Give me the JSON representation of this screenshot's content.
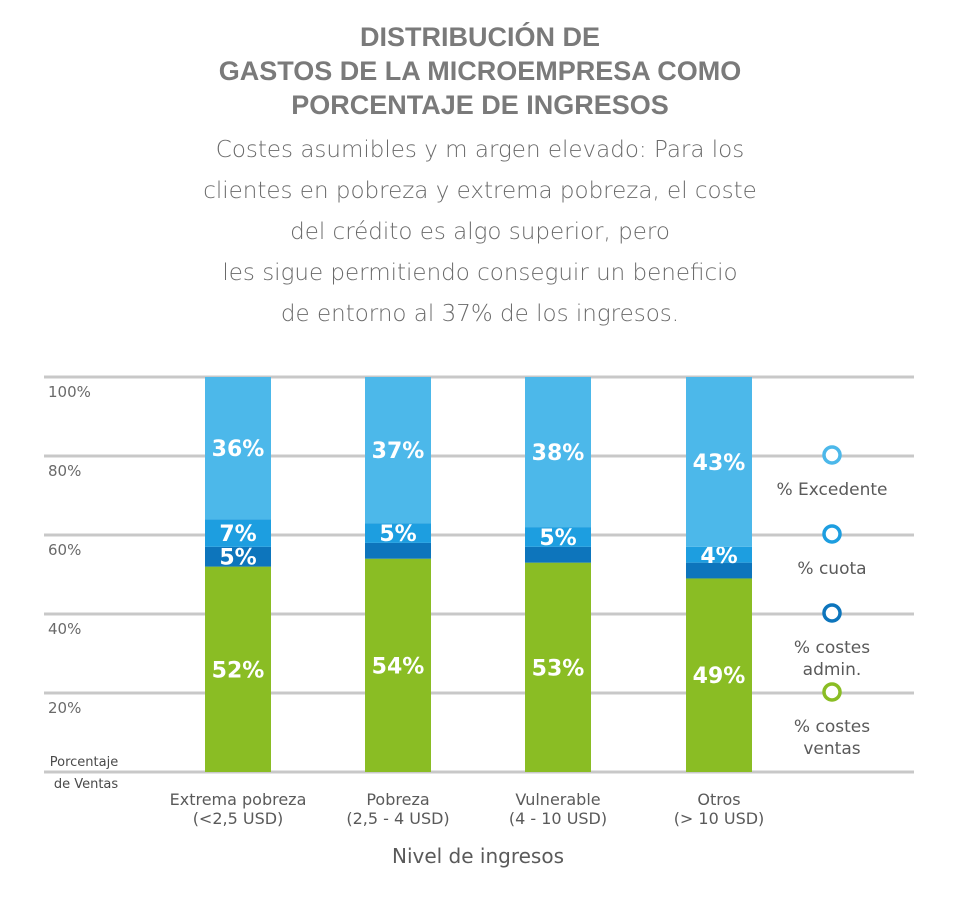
{
  "title_lines": [
    "DISTRIBUCIÓN DE",
    "GASTOS DE LA MICROEMPRESA COMO",
    "PORCENTAJE DE INGRESOS"
  ],
  "subtitle_lines": [
    "Costes asumibles y m argen elevado: Para los",
    "clientes en pobreza y extrema pobreza, el coste",
    "del crédito es algo superior, pero",
    "les sigue permitiendo conseguir un beneficio",
    "de entorno al 37% de los ingresos."
  ],
  "chart_data": {
    "type": "bar",
    "stacked": true,
    "categories": [
      [
        "Extrema pobreza",
        "(<2,5 USD)"
      ],
      [
        "Pobreza",
        "(2,5 - 4 USD)"
      ],
      [
        "Vulnerable",
        "(4 - 10 USD)"
      ],
      [
        "Otros",
        "(> 10 USD)"
      ]
    ],
    "series": [
      {
        "name": "% costes ventas",
        "legend_lines": [
          "% costes",
          "ventas"
        ],
        "color": "#8abd24",
        "values": [
          52,
          54,
          53,
          49
        ],
        "labels": [
          "52%",
          "54%",
          "53%",
          "49%"
        ]
      },
      {
        "name": "% costes admin.",
        "legend_lines": [
          "% costes",
          "admin."
        ],
        "color": "#0d75bc",
        "values": [
          5,
          4,
          4,
          4
        ],
        "labels": [
          "5%",
          "",
          "",
          ""
        ]
      },
      {
        "name": "% cuota",
        "legend_lines": [
          "% cuota"
        ],
        "color": "#1d9ee0",
        "values": [
          7,
          5,
          5,
          4
        ],
        "labels": [
          "7%",
          "5%",
          "5%",
          "4%"
        ]
      },
      {
        "name": "% Excedente",
        "legend_lines": [
          "% Excedente"
        ],
        "color": "#4cb8ea",
        "values": [
          36,
          37,
          38,
          43
        ],
        "labels": [
          "36%",
          "37%",
          "38%",
          "43%"
        ]
      }
    ],
    "legend_order": [
      "% Excedente",
      "% cuota",
      "% costes admin.",
      "% costes ventas"
    ],
    "yticks": [
      "100%",
      "80%",
      "60%",
      "40%",
      "20%"
    ],
    "ylabel": [
      "Porcentaje",
      "de Ventas"
    ],
    "xlabel": "Nivel de ingresos",
    "ylim": [
      0,
      100
    ],
    "grid": true,
    "legend_position": "right"
  }
}
